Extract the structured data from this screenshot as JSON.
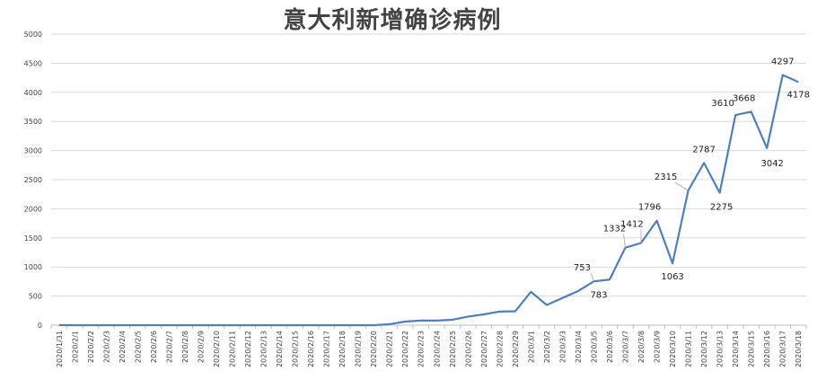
{
  "chart_data": {
    "type": "line",
    "title": "意大利新增确诊病例",
    "xlabel": "",
    "ylabel": "",
    "ylim": [
      0,
      5000
    ],
    "yticks": [
      0,
      500,
      1000,
      1500,
      2000,
      2500,
      3000,
      3500,
      4000,
      4500,
      5000
    ],
    "grid": true,
    "legend": "none",
    "line_color": "#4f7fbf",
    "categories": [
      "2020/1/31",
      "2020/2/1",
      "2020/2/2",
      "2020/2/3",
      "2020/2/4",
      "2020/2/5",
      "2020/2/6",
      "2020/2/7",
      "2020/2/8",
      "2020/2/9",
      "2020/2/10",
      "2020/2/11",
      "2020/2/12",
      "2020/2/13",
      "2020/2/14",
      "2020/2/15",
      "2020/2/16",
      "2020/2/17",
      "2020/2/18",
      "2020/2/19",
      "2020/2/20",
      "2020/2/21",
      "2020/2/22",
      "2020/2/23",
      "2020/2/24",
      "2020/2/25",
      "2020/2/26",
      "2020/2/27",
      "2020/2/28",
      "2020/2/29",
      "2020/3/1",
      "2020/3/2",
      "2020/3/3",
      "2020/3/4",
      "2020/3/5",
      "2020/3/6",
      "2020/3/7",
      "2020/3/8",
      "2020/3/9",
      "2020/3/10",
      "2020/3/11",
      "2020/3/12",
      "2020/3/13",
      "2020/3/14",
      "2020/3/15",
      "2020/3/16",
      "2020/3/17",
      "2020/3/18"
    ],
    "values": [
      2,
      0,
      0,
      0,
      0,
      0,
      1,
      0,
      0,
      0,
      0,
      0,
      0,
      0,
      0,
      0,
      0,
      0,
      0,
      0,
      0,
      17,
      62,
      79,
      79,
      93,
      148,
      185,
      234,
      239,
      573,
      347,
      466,
      587,
      753,
      783,
      1332,
      1412,
      1796,
      1063,
      2315,
      2787,
      2275,
      3610,
      3668,
      3042,
      4297,
      4178
    ],
    "data_labels": [
      {
        "index": 34,
        "text": "753"
      },
      {
        "index": 35,
        "text": "783"
      },
      {
        "index": 36,
        "text": "1332"
      },
      {
        "index": 37,
        "text": "1412"
      },
      {
        "index": 38,
        "text": "1796"
      },
      {
        "index": 39,
        "text": "1063"
      },
      {
        "index": 40,
        "text": "2315"
      },
      {
        "index": 41,
        "text": "2787"
      },
      {
        "index": 42,
        "text": "2275"
      },
      {
        "index": 43,
        "text": "3610"
      },
      {
        "index": 44,
        "text": "3668"
      },
      {
        "index": 45,
        "text": "3042"
      },
      {
        "index": 46,
        "text": "4297"
      },
      {
        "index": 47,
        "text": "4178"
      }
    ]
  }
}
